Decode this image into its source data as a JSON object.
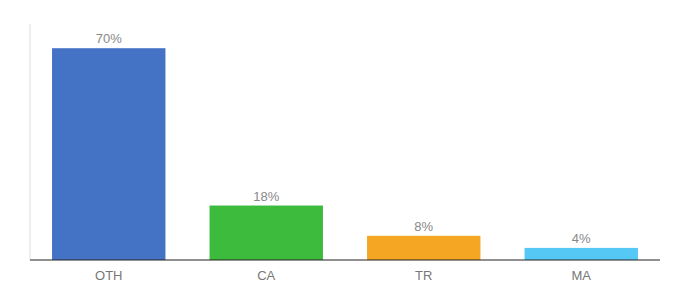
{
  "chart_data": {
    "type": "bar",
    "categories": [
      "OTH",
      "CA",
      "TR",
      "MA"
    ],
    "values": [
      70,
      18,
      8,
      4
    ],
    "value_labels": [
      "70%",
      "18%",
      "8%",
      "4%"
    ],
    "colors": [
      "#4472c4",
      "#3dbb3d",
      "#f5a623",
      "#56c8f5"
    ],
    "ylim": [
      0,
      78
    ],
    "data_labels": true,
    "tick_labels": "x",
    "grid": false
  }
}
